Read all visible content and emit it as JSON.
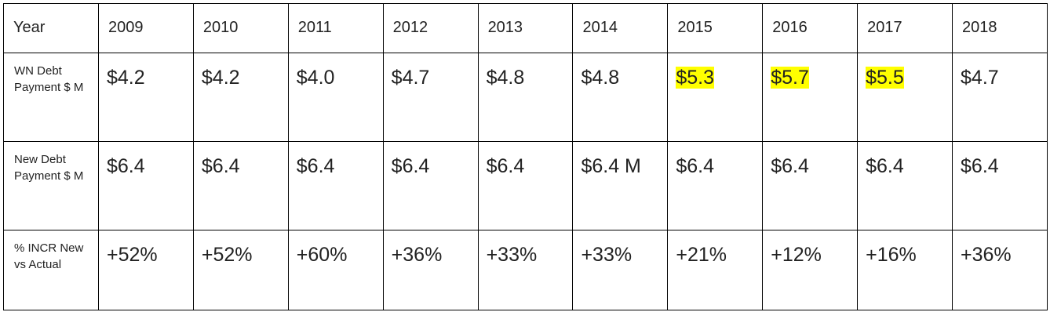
{
  "table": {
    "header": {
      "label": "Year",
      "years": [
        "2009",
        "2010",
        "2011",
        "2012",
        "2013",
        "2014",
        "2015",
        "2016",
        "2017",
        "2018"
      ]
    },
    "rows": [
      {
        "label": "WN Debt Payment $ M",
        "values": [
          "$4.2",
          "$4.2",
          "$4.0",
          "$4.7",
          "$4.8",
          "$4.8",
          "$5.3",
          "$5.7",
          "$5.5",
          "$4.7"
        ],
        "highlighted_years": [
          "2015",
          "2016",
          "2017"
        ]
      },
      {
        "label": "New Debt Payment $ M",
        "values": [
          "$6.4",
          "$6.4",
          "$6.4",
          "$6.4",
          "$6.4",
          "$6.4 M",
          "$6.4",
          "$6.4",
          "$6.4",
          "$6.4"
        ]
      },
      {
        "label": "% INCR New vs Actual",
        "values": [
          "+52%",
          "+52%",
          "+60%",
          "+36%",
          "+33%",
          "+33%",
          "+21%",
          "+12%",
          "+16%",
          "+36%"
        ]
      }
    ],
    "highlight_color": "#ffff00",
    "border_color": "#000000",
    "text_color": "#222222"
  }
}
